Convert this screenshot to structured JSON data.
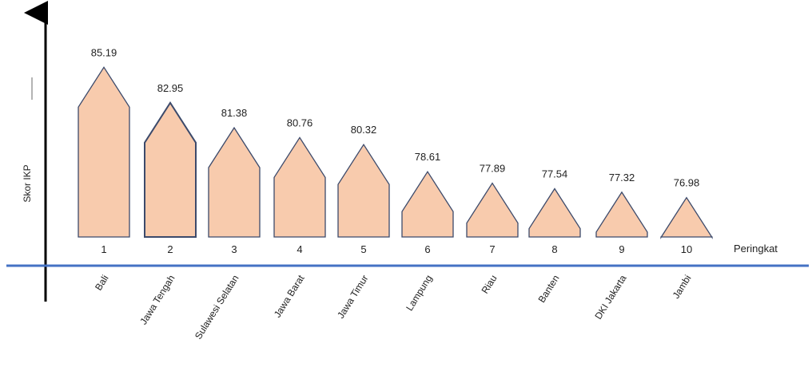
{
  "chart_data": {
    "type": "bar",
    "bar_shape": "house",
    "xlabel": "Peringkat",
    "ylabel": "Skor IKP",
    "categories": [
      "1",
      "2",
      "3",
      "4",
      "5",
      "6",
      "7",
      "8",
      "9",
      "10"
    ],
    "provinces": [
      "Bali",
      "Jawa Tengah",
      "Sulawesi Selatan",
      "Jawa Barat",
      "Jawa Timur",
      "Lampung",
      "Riau",
      "Banten",
      "DKI Jakarta",
      "Jambi"
    ],
    "values": [
      85.19,
      82.95,
      81.38,
      80.76,
      80.32,
      78.61,
      77.89,
      77.54,
      77.32,
      76.98
    ],
    "colors": {
      "bar_fill": "#F8CBAD",
      "bar_stroke": "#3C4A6B",
      "x_axis": "#4472C4",
      "y_axis": "#000000"
    }
  }
}
